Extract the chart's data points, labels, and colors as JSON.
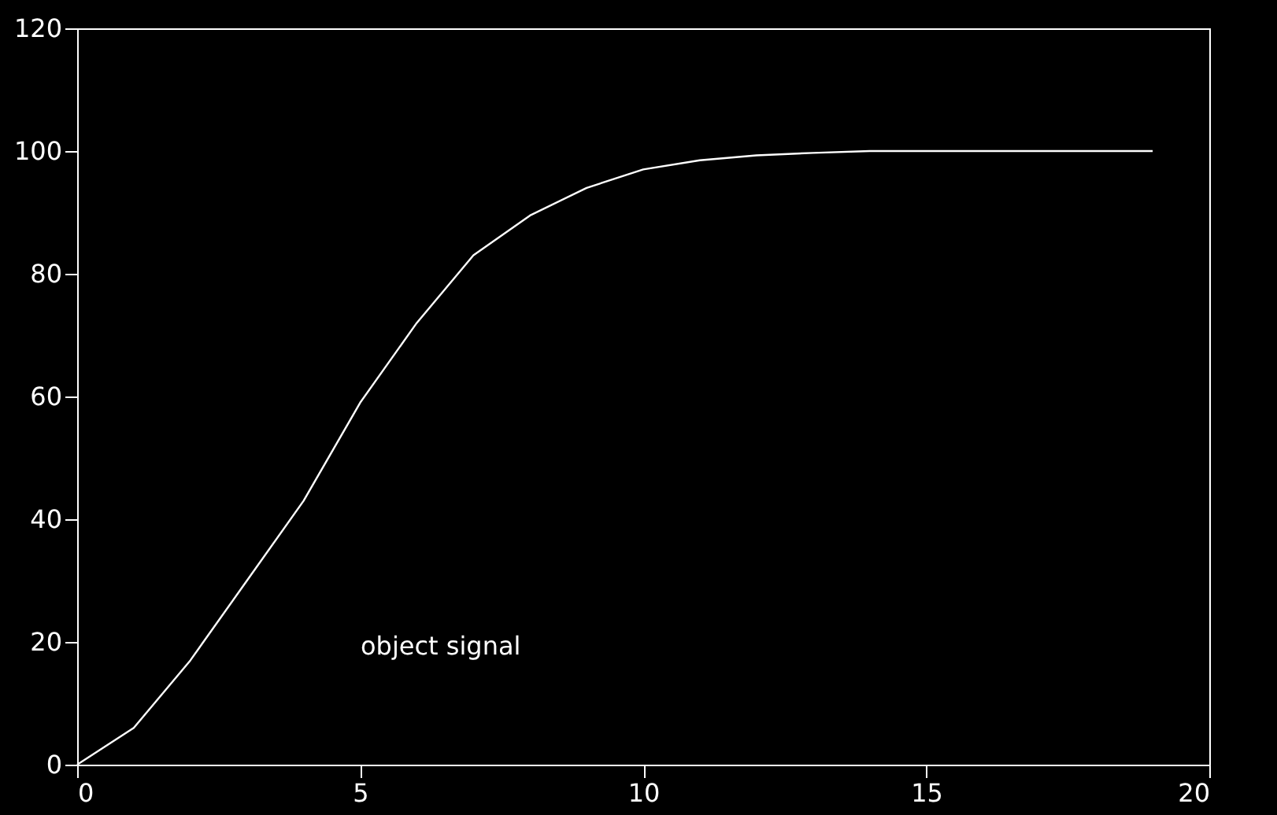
{
  "chart_data": {
    "type": "line",
    "x": [
      0,
      1,
      2,
      3,
      4,
      5,
      6,
      7,
      8,
      9,
      10,
      11,
      12,
      13,
      14,
      15,
      16,
      17,
      18,
      19
    ],
    "series": [
      {
        "color": "#ffffff",
        "values": [
          0,
          6,
          17,
          30,
          43,
          59,
          72,
          83,
          89.5,
          94,
          97,
          98.5,
          99.3,
          99.7,
          100,
          100,
          100,
          100,
          100,
          100
        ]
      }
    ],
    "xlim": [
      0,
      20
    ],
    "xticks": [
      0,
      5,
      10,
      15,
      20
    ],
    "ylim": [
      0,
      120
    ],
    "yticks": [
      0,
      20,
      40,
      60,
      80,
      100,
      120
    ],
    "annotations": [
      "object signal"
    ],
    "grid": false,
    "legend": false
  }
}
